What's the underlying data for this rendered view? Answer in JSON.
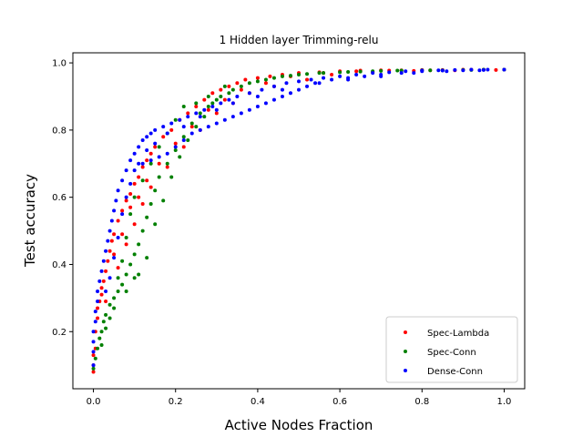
{
  "chart_data": {
    "type": "scatter",
    "title": "1 Hidden layer Trimming-relu",
    "xlabel": "Active Nodes Fraction",
    "ylabel": "Test accuracy",
    "xlim": [
      -0.05,
      1.05
    ],
    "ylim": [
      0.03,
      1.03
    ],
    "xticks": [
      0.0,
      0.2,
      0.4,
      0.6,
      0.8,
      1.0
    ],
    "xtick_labels": [
      "0.0",
      "0.2",
      "0.4",
      "0.6",
      "0.8",
      "1.0"
    ],
    "yticks": [
      0.2,
      0.4,
      0.6,
      0.8,
      1.0
    ],
    "ytick_labels": [
      "0.2",
      "0.4",
      "0.6",
      "0.8",
      "1.0"
    ],
    "grid": false,
    "legend_position": "lower-right",
    "series": [
      {
        "name": "Spec-Lambda",
        "color": "#ff0000",
        "points": [
          [
            0.0,
            0.08
          ],
          [
            0.0,
            0.1
          ],
          [
            0.0,
            0.13
          ],
          [
            0.005,
            0.15
          ],
          [
            0.005,
            0.2
          ],
          [
            0.01,
            0.24
          ],
          [
            0.01,
            0.27
          ],
          [
            0.015,
            0.29
          ],
          [
            0.02,
            0.31
          ],
          [
            0.02,
            0.33
          ],
          [
            0.025,
            0.35
          ],
          [
            0.03,
            0.38
          ],
          [
            0.035,
            0.41
          ],
          [
            0.04,
            0.44
          ],
          [
            0.045,
            0.47
          ],
          [
            0.05,
            0.49
          ],
          [
            0.06,
            0.53
          ],
          [
            0.07,
            0.56
          ],
          [
            0.08,
            0.59
          ],
          [
            0.09,
            0.61
          ],
          [
            0.1,
            0.64
          ],
          [
            0.11,
            0.66
          ],
          [
            0.12,
            0.69
          ],
          [
            0.13,
            0.71
          ],
          [
            0.14,
            0.73
          ],
          [
            0.15,
            0.75
          ],
          [
            0.17,
            0.78
          ],
          [
            0.19,
            0.8
          ],
          [
            0.21,
            0.83
          ],
          [
            0.23,
            0.85
          ],
          [
            0.25,
            0.87
          ],
          [
            0.27,
            0.89
          ],
          [
            0.29,
            0.91
          ],
          [
            0.31,
            0.92
          ],
          [
            0.33,
            0.93
          ],
          [
            0.35,
            0.94
          ],
          [
            0.37,
            0.95
          ],
          [
            0.4,
            0.955
          ],
          [
            0.43,
            0.96
          ],
          [
            0.46,
            0.965
          ],
          [
            0.5,
            0.97
          ],
          [
            0.55,
            0.972
          ],
          [
            0.6,
            0.975
          ],
          [
            0.65,
            0.977
          ],
          [
            0.7,
            0.978
          ],
          [
            0.75,
            0.978
          ],
          [
            0.8,
            0.979
          ],
          [
            0.85,
            0.979
          ],
          [
            0.9,
            0.98
          ],
          [
            0.95,
            0.98
          ],
          [
            1.0,
            0.98
          ],
          [
            0.05,
            0.43
          ],
          [
            0.07,
            0.49
          ],
          [
            0.09,
            0.57
          ],
          [
            0.11,
            0.6
          ],
          [
            0.13,
            0.65
          ],
          [
            0.16,
            0.7
          ],
          [
            0.2,
            0.76
          ],
          [
            0.24,
            0.81
          ],
          [
            0.28,
            0.86
          ],
          [
            0.32,
            0.89
          ],
          [
            0.36,
            0.92
          ],
          [
            0.42,
            0.94
          ],
          [
            0.48,
            0.96
          ],
          [
            0.56,
            0.97
          ],
          [
            0.64,
            0.975
          ],
          [
            0.72,
            0.977
          ],
          [
            0.82,
            0.978
          ],
          [
            0.92,
            0.98
          ],
          [
            0.03,
            0.29
          ],
          [
            0.06,
            0.39
          ],
          [
            0.08,
            0.46
          ],
          [
            0.1,
            0.52
          ],
          [
            0.12,
            0.58
          ],
          [
            0.14,
            0.63
          ],
          [
            0.18,
            0.69
          ],
          [
            0.22,
            0.75
          ],
          [
            0.26,
            0.8
          ],
          [
            0.3,
            0.85
          ],
          [
            0.34,
            0.88
          ],
          [
            0.38,
            0.91
          ],
          [
            0.44,
            0.93
          ],
          [
            0.52,
            0.95
          ],
          [
            0.58,
            0.965
          ],
          [
            0.68,
            0.972
          ],
          [
            0.78,
            0.976
          ],
          [
            0.88,
            0.978
          ],
          [
            0.98,
            0.979
          ]
        ]
      },
      {
        "name": "Spec-Conn",
        "color": "#008000",
        "points": [
          [
            0.0,
            0.09
          ],
          [
            0.005,
            0.12
          ],
          [
            0.01,
            0.15
          ],
          [
            0.015,
            0.18
          ],
          [
            0.02,
            0.2
          ],
          [
            0.025,
            0.23
          ],
          [
            0.03,
            0.25
          ],
          [
            0.04,
            0.28
          ],
          [
            0.05,
            0.3
          ],
          [
            0.06,
            0.32
          ],
          [
            0.07,
            0.34
          ],
          [
            0.08,
            0.37
          ],
          [
            0.09,
            0.4
          ],
          [
            0.1,
            0.43
          ],
          [
            0.11,
            0.46
          ],
          [
            0.12,
            0.5
          ],
          [
            0.13,
            0.54
          ],
          [
            0.14,
            0.58
          ],
          [
            0.15,
            0.62
          ],
          [
            0.16,
            0.66
          ],
          [
            0.18,
            0.7
          ],
          [
            0.2,
            0.74
          ],
          [
            0.22,
            0.78
          ],
          [
            0.24,
            0.82
          ],
          [
            0.26,
            0.85
          ],
          [
            0.28,
            0.87
          ],
          [
            0.3,
            0.89
          ],
          [
            0.33,
            0.91
          ],
          [
            0.36,
            0.93
          ],
          [
            0.4,
            0.945
          ],
          [
            0.44,
            0.955
          ],
          [
            0.48,
            0.962
          ],
          [
            0.52,
            0.967
          ],
          [
            0.56,
            0.97
          ],
          [
            0.6,
            0.972
          ],
          [
            0.65,
            0.974
          ],
          [
            0.7,
            0.976
          ],
          [
            0.75,
            0.977
          ],
          [
            0.8,
            0.978
          ],
          [
            0.85,
            0.978
          ],
          [
            0.9,
            0.979
          ],
          [
            0.95,
            0.98
          ],
          [
            1.0,
            0.98
          ],
          [
            0.08,
            0.32
          ],
          [
            0.1,
            0.36
          ],
          [
            0.11,
            0.37
          ],
          [
            0.13,
            0.42
          ],
          [
            0.15,
            0.52
          ],
          [
            0.17,
            0.59
          ],
          [
            0.19,
            0.66
          ],
          [
            0.21,
            0.72
          ],
          [
            0.23,
            0.77
          ],
          [
            0.25,
            0.81
          ],
          [
            0.27,
            0.84
          ],
          [
            0.29,
            0.88
          ],
          [
            0.31,
            0.9
          ],
          [
            0.34,
            0.92
          ],
          [
            0.38,
            0.94
          ],
          [
            0.42,
            0.95
          ],
          [
            0.46,
            0.96
          ],
          [
            0.5,
            0.965
          ],
          [
            0.55,
            0.97
          ],
          [
            0.62,
            0.973
          ],
          [
            0.68,
            0.975
          ],
          [
            0.74,
            0.977
          ],
          [
            0.82,
            0.978
          ],
          [
            0.92,
            0.979
          ],
          [
            0.02,
            0.16
          ],
          [
            0.03,
            0.21
          ],
          [
            0.04,
            0.24
          ],
          [
            0.05,
            0.27
          ],
          [
            0.06,
            0.36
          ],
          [
            0.07,
            0.41
          ],
          [
            0.08,
            0.48
          ],
          [
            0.09,
            0.55
          ],
          [
            0.1,
            0.6
          ],
          [
            0.12,
            0.65
          ],
          [
            0.14,
            0.7
          ],
          [
            0.16,
            0.75
          ],
          [
            0.18,
            0.79
          ],
          [
            0.2,
            0.83
          ],
          [
            0.22,
            0.87
          ],
          [
            0.25,
            0.88
          ],
          [
            0.28,
            0.9
          ],
          [
            0.32,
            0.93
          ]
        ]
      },
      {
        "name": "Dense-Conn",
        "color": "#0000ff",
        "points": [
          [
            0.0,
            0.1
          ],
          [
            0.0,
            0.14
          ],
          [
            0.0,
            0.17
          ],
          [
            0.0,
            0.2
          ],
          [
            0.005,
            0.23
          ],
          [
            0.005,
            0.26
          ],
          [
            0.01,
            0.29
          ],
          [
            0.01,
            0.32
          ],
          [
            0.015,
            0.35
          ],
          [
            0.02,
            0.38
          ],
          [
            0.025,
            0.41
          ],
          [
            0.03,
            0.44
          ],
          [
            0.035,
            0.47
          ],
          [
            0.04,
            0.5
          ],
          [
            0.045,
            0.53
          ],
          [
            0.05,
            0.56
          ],
          [
            0.055,
            0.59
          ],
          [
            0.06,
            0.62
          ],
          [
            0.07,
            0.65
          ],
          [
            0.08,
            0.68
          ],
          [
            0.09,
            0.71
          ],
          [
            0.1,
            0.73
          ],
          [
            0.11,
            0.75
          ],
          [
            0.12,
            0.77
          ],
          [
            0.13,
            0.78
          ],
          [
            0.14,
            0.79
          ],
          [
            0.15,
            0.8
          ],
          [
            0.17,
            0.81
          ],
          [
            0.19,
            0.82
          ],
          [
            0.21,
            0.83
          ],
          [
            0.23,
            0.84
          ],
          [
            0.25,
            0.85
          ],
          [
            0.27,
            0.86
          ],
          [
            0.29,
            0.87
          ],
          [
            0.31,
            0.88
          ],
          [
            0.33,
            0.89
          ],
          [
            0.35,
            0.9
          ],
          [
            0.38,
            0.91
          ],
          [
            0.41,
            0.92
          ],
          [
            0.44,
            0.93
          ],
          [
            0.47,
            0.94
          ],
          [
            0.5,
            0.945
          ],
          [
            0.53,
            0.95
          ],
          [
            0.56,
            0.955
          ],
          [
            0.6,
            0.96
          ],
          [
            0.64,
            0.965
          ],
          [
            0.68,
            0.97
          ],
          [
            0.72,
            0.972
          ],
          [
            0.76,
            0.975
          ],
          [
            0.8,
            0.977
          ],
          [
            0.84,
            0.978
          ],
          [
            0.88,
            0.979
          ],
          [
            0.92,
            0.98
          ],
          [
            0.96,
            0.98
          ],
          [
            1.0,
            0.98
          ],
          [
            0.1,
            0.68
          ],
          [
            0.12,
            0.7
          ],
          [
            0.14,
            0.71
          ],
          [
            0.16,
            0.72
          ],
          [
            0.18,
            0.73
          ],
          [
            0.2,
            0.75
          ],
          [
            0.22,
            0.77
          ],
          [
            0.24,
            0.79
          ],
          [
            0.26,
            0.8
          ],
          [
            0.28,
            0.81
          ],
          [
            0.3,
            0.82
          ],
          [
            0.32,
            0.83
          ],
          [
            0.34,
            0.84
          ],
          [
            0.36,
            0.85
          ],
          [
            0.38,
            0.86
          ],
          [
            0.4,
            0.87
          ],
          [
            0.42,
            0.88
          ],
          [
            0.44,
            0.89
          ],
          [
            0.46,
            0.9
          ],
          [
            0.48,
            0.91
          ],
          [
            0.5,
            0.92
          ],
          [
            0.52,
            0.93
          ],
          [
            0.55,
            0.94
          ],
          [
            0.58,
            0.95
          ],
          [
            0.62,
            0.955
          ],
          [
            0.66,
            0.96
          ],
          [
            0.7,
            0.965
          ],
          [
            0.75,
            0.97
          ],
          [
            0.8,
            0.975
          ],
          [
            0.85,
            0.977
          ],
          [
            0.9,
            0.978
          ],
          [
            0.95,
            0.979
          ],
          [
            0.03,
            0.32
          ],
          [
            0.04,
            0.36
          ],
          [
            0.05,
            0.42
          ],
          [
            0.06,
            0.48
          ],
          [
            0.07,
            0.55
          ],
          [
            0.08,
            0.6
          ],
          [
            0.09,
            0.64
          ],
          [
            0.11,
            0.7
          ],
          [
            0.13,
            0.74
          ],
          [
            0.15,
            0.76
          ],
          [
            0.18,
            0.79
          ],
          [
            0.22,
            0.81
          ],
          [
            0.26,
            0.84
          ],
          [
            0.3,
            0.86
          ],
          [
            0.34,
            0.88
          ],
          [
            0.4,
            0.9
          ],
          [
            0.46,
            0.92
          ],
          [
            0.54,
            0.94
          ],
          [
            0.62,
            0.95
          ],
          [
            0.7,
            0.96
          ],
          [
            0.78,
            0.97
          ],
          [
            0.86,
            0.975
          ],
          [
            0.94,
            0.978
          ]
        ]
      }
    ]
  }
}
